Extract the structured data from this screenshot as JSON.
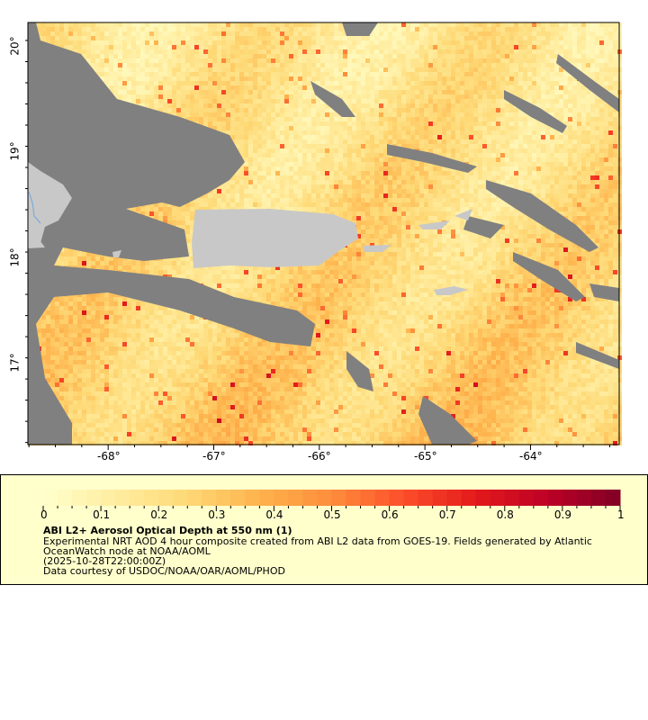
{
  "map": {
    "lon_ticks": [
      "-68°",
      "-67°",
      "-66°",
      "-65°",
      "-64°"
    ],
    "lon_values": [
      -68,
      -67,
      -66,
      -65,
      -64
    ],
    "lat_ticks": [
      "20°",
      "19°",
      "18°",
      "17°"
    ],
    "lat_values": [
      20,
      19,
      18,
      17
    ],
    "lon_range": [
      -68.76,
      -63.16
    ],
    "lat_range": [
      16.23,
      20.22
    ],
    "colors": {
      "cloud_mask": "#808080",
      "land": "#c8c8c8",
      "low_aod": "#ffeda0",
      "river": "#6fa8dc"
    }
  },
  "legend": {
    "tick_labels": [
      "0",
      "0.1",
      "0.2",
      "0.3",
      "0.4",
      "0.5",
      "0.6",
      "0.7",
      "0.8",
      "0.9",
      "1"
    ],
    "colormap": [
      "#ffffcc",
      "#ffeda0",
      "#fed976",
      "#feb24c",
      "#fd8d3c",
      "#fc4e2a",
      "#e31a1c",
      "#bd0026",
      "#800026"
    ],
    "title": "ABI L2+ Aerosol Optical Depth at 550 nm (1)",
    "description_line1": "Experimental NRT AOD 4 hour composite created from ABI L2 data from GOES-19. Fields generated by Atlantic",
    "description_line2": "OceanWatch node at NOAA/AOML",
    "timestamp": "(2025-10-28T22:00:00Z)",
    "credit": "Data courtesy of USDOC/NOAA/OAR/AOML/PHOD"
  }
}
